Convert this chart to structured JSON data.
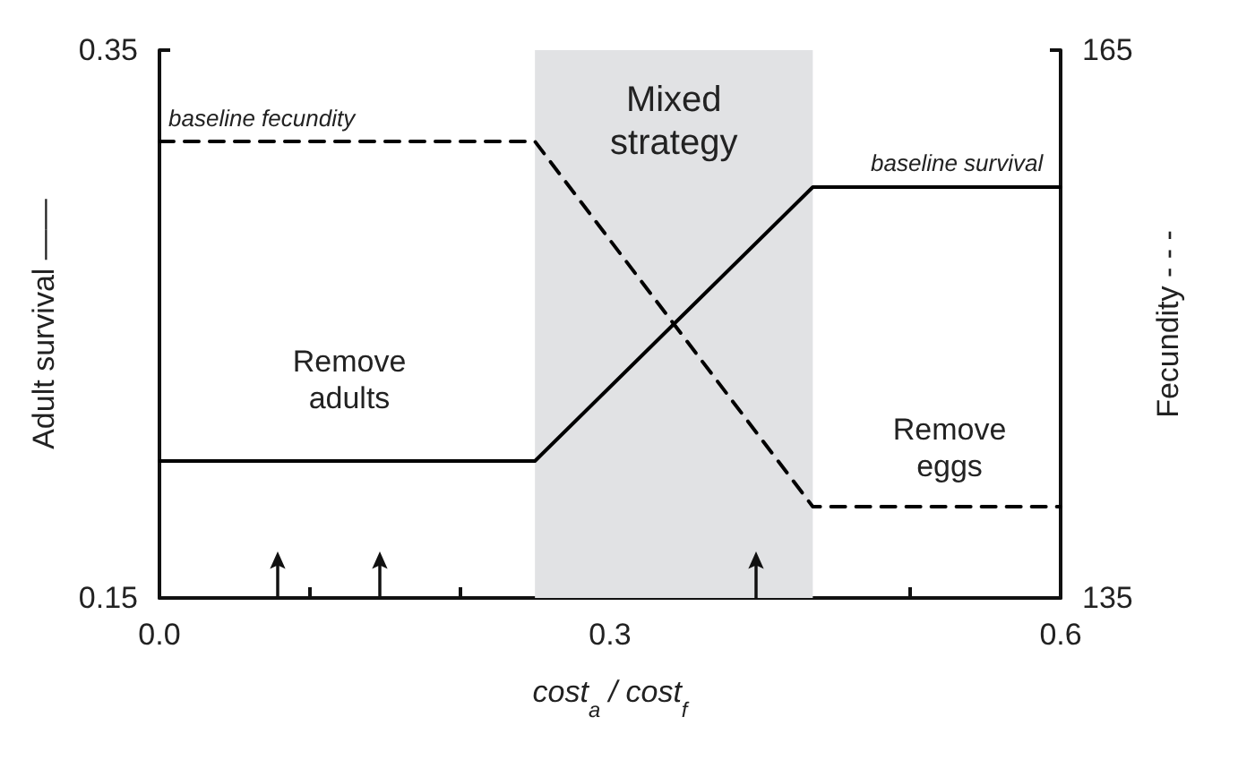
{
  "chart_data": {
    "type": "line",
    "x": [
      0.0,
      0.25,
      0.435,
      0.6
    ],
    "series": [
      {
        "color": "#000000",
        "values": [
          0.2,
          0.2,
          0.3,
          0.3
        ],
        "line_style": "solid"
      },
      {
        "color": "#000000",
        "values": [
          160,
          160,
          140,
          140
        ],
        "axis": "y2",
        "line_style": "dashed"
      }
    ],
    "xlabel": "cost$_{a}$ / cost$_{f}$",
    "ylabel": "Adult survival ——",
    "y2label": "Fecundity - - -",
    "xlim": [
      0.0,
      0.6
    ],
    "xticks": [
      {
        "value": 0,
        "label": "0.0"
      },
      {
        "value": 0.1,
        "label": null
      },
      {
        "value": 0.2,
        "label": null
      },
      0.3,
      {
        "value": 0.4,
        "label": null
      },
      {
        "value": 0.5,
        "label": null
      },
      0.6
    ],
    "ylim": [
      0.15,
      0.35
    ],
    "yticks": [
      0.15,
      0.35
    ],
    "y2lim": [
      135,
      165
    ],
    "y2ticks": [
      135,
      165
    ],
    "bands": [
      {
        "axis": "x",
        "from": 0.25,
        "to": 0.435,
        "label": "Mixed strategy",
        "color": "#e1e2e4"
      }
    ],
    "annotations": [
      "baseline fecundity",
      "baseline survival",
      "Remove\nadults",
      "Remove\neggs"
    ],
    "grid": false,
    "marker": "none"
  }
}
